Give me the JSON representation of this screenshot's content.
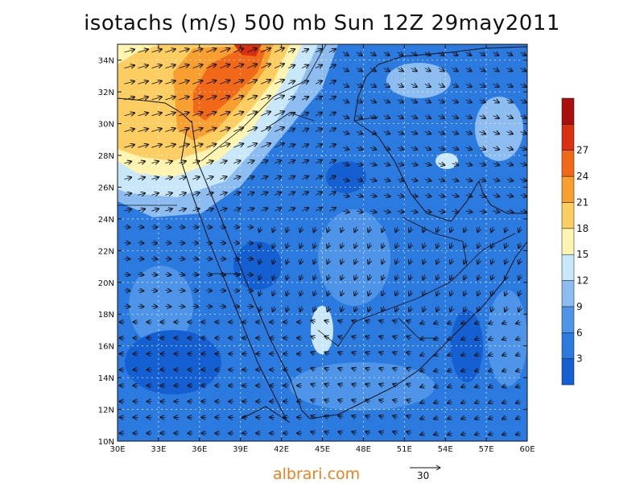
{
  "title": "isotachs (m/s) 500 mb Sun 12Z 29may2011",
  "credit": "albrari.com",
  "vector_reference": {
    "label": "30",
    "magnitude": 30,
    "units": "m/s"
  },
  "axes": {
    "x_ticks": [
      "30E",
      "33E",
      "36E",
      "39E",
      "42E",
      "45E",
      "48E",
      "51E",
      "54E",
      "57E",
      "60E"
    ],
    "y_ticks": [
      "10N",
      "12N",
      "14N",
      "16N",
      "18N",
      "20N",
      "22N",
      "24N",
      "26N",
      "28N",
      "30N",
      "32N",
      "34N"
    ],
    "lon_range": [
      30,
      60
    ],
    "lat_range": [
      10,
      35
    ],
    "grid": "dashed"
  },
  "colorbar": {
    "labels": [
      "3",
      "6",
      "9",
      "12",
      "15",
      "18",
      "21",
      "24",
      "27"
    ],
    "levels": [
      0,
      3,
      6,
      9,
      12,
      15,
      18,
      21,
      24,
      27,
      30
    ],
    "colors": [
      "#1460d2",
      "#2a7ae0",
      "#4e95ea",
      "#8cbcf0",
      "#c8e8fa",
      "#fff5b0",
      "#fccd60",
      "#f7a030",
      "#f06818",
      "#d83010",
      "#a81010"
    ]
  },
  "colors": {
    "border": "#111111",
    "credit": "#ef7f1a"
  }
}
